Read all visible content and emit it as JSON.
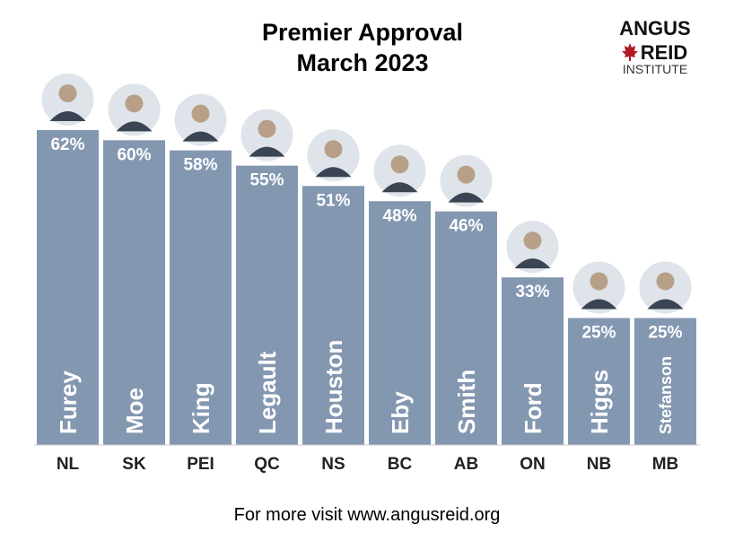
{
  "chart_data": {
    "type": "bar",
    "title": "Premier Approval",
    "subtitle": "March 2023",
    "categories": [
      "NL",
      "SK",
      "PEI",
      "QC",
      "NS",
      "BC",
      "AB",
      "ON",
      "NB",
      "MB"
    ],
    "names": [
      "Furey",
      "Moe",
      "King",
      "Legault",
      "Houston",
      "Eby",
      "Smith",
      "Ford",
      "Higgs",
      "Stefanson"
    ],
    "values": [
      62,
      60,
      58,
      55,
      51,
      48,
      46,
      33,
      25,
      25
    ],
    "value_labels": [
      "62%",
      "60%",
      "58%",
      "55%",
      "51%",
      "48%",
      "46%",
      "33%",
      "25%",
      "25%"
    ],
    "ylim": [
      0,
      65
    ],
    "grid": false,
    "bar_color": "#8497b0"
  },
  "logo": {
    "line1": "ANGUS",
    "line2": "REID",
    "line3": "INSTITUTE",
    "leaf_color": "#b01c24"
  },
  "footer": {
    "text": "For more visit www.angusreid.org"
  },
  "icons": [
    "maple-leaf-icon",
    "premier-portrait-icon"
  ]
}
